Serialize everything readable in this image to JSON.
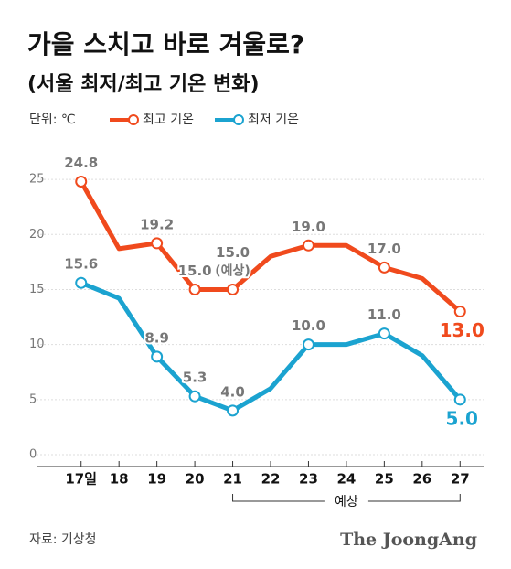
{
  "chart_data": {
    "type": "line",
    "title": "가을 스치고 바로 겨울로?",
    "subtitle": "(서울 최저/최고 기온 변화)",
    "unit": "단위: ℃",
    "categories": [
      "17일",
      "18",
      "19",
      "20",
      "21",
      "22",
      "23",
      "24",
      "25",
      "26",
      "27"
    ],
    "series": [
      {
        "name": "최고 기온",
        "color": "#f04a1d",
        "values": [
          24.8,
          18.7,
          19.2,
          15.0,
          15.0,
          18.0,
          19.0,
          19.0,
          17.0,
          16.0,
          13.0
        ],
        "value_labels": [
          "24.8",
          null,
          "19.2",
          "15.0",
          "15.0",
          null,
          "19.0",
          null,
          "17.0",
          null,
          "13.0"
        ]
      },
      {
        "name": "최저 기온",
        "color": "#1ba3d0",
        "values": [
          15.6,
          14.2,
          8.9,
          5.3,
          4.0,
          6.0,
          10.0,
          10.0,
          11.0,
          9.0,
          5.0
        ],
        "value_labels": [
          "15.6",
          null,
          "8.9",
          "5.3",
          "4.0",
          null,
          "10.0",
          null,
          "11.0",
          null,
          "5.0"
        ]
      }
    ],
    "annotation": "(예상)",
    "forecast_label": "예상",
    "forecast_range": [
      4,
      10
    ],
    "ylim": [
      0,
      27
    ],
    "yticks": [
      0,
      5,
      10,
      15,
      20,
      25
    ],
    "grid": true,
    "source": "자료: 기상청",
    "brand": "The JoongAng"
  }
}
